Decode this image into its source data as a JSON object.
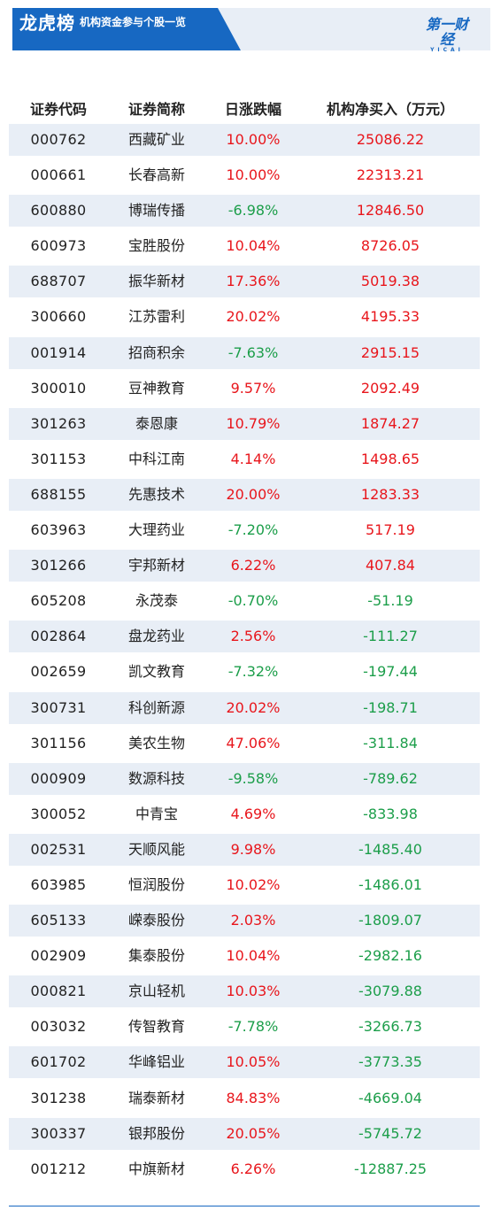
{
  "header": {
    "title": "龙虎榜",
    "subtitle": "机构资金参与个股一览",
    "logo_main": "第一财经",
    "logo_sub": "YICAI"
  },
  "colors": {
    "accent": "#1768c2",
    "row_stripe": "#e8eef6",
    "positive": "#e8161c",
    "negative": "#1c9e4a"
  },
  "table": {
    "columns": [
      "证券代码",
      "证券简称",
      "日涨跌幅",
      "机构净买入（万元）"
    ],
    "rows": [
      {
        "code": "000762",
        "name": "西藏矿业",
        "change": "10.00%",
        "net": "25086.22"
      },
      {
        "code": "000661",
        "name": "长春高新",
        "change": "10.00%",
        "net": "22313.21"
      },
      {
        "code": "600880",
        "name": "博瑞传播",
        "change": "-6.98%",
        "net": "12846.50"
      },
      {
        "code": "600973",
        "name": "宝胜股份",
        "change": "10.04%",
        "net": "8726.05"
      },
      {
        "code": "688707",
        "name": "振华新材",
        "change": "17.36%",
        "net": "5019.38"
      },
      {
        "code": "300660",
        "name": "江苏雷利",
        "change": "20.02%",
        "net": "4195.33"
      },
      {
        "code": "001914",
        "name": "招商积余",
        "change": "-7.63%",
        "net": "2915.15"
      },
      {
        "code": "300010",
        "name": "豆神教育",
        "change": "9.57%",
        "net": "2092.49"
      },
      {
        "code": "301263",
        "name": "泰恩康",
        "change": "10.79%",
        "net": "1874.27"
      },
      {
        "code": "301153",
        "name": "中科江南",
        "change": "4.14%",
        "net": "1498.65"
      },
      {
        "code": "688155",
        "name": "先惠技术",
        "change": "20.00%",
        "net": "1283.33"
      },
      {
        "code": "603963",
        "name": "大理药业",
        "change": "-7.20%",
        "net": "517.19"
      },
      {
        "code": "301266",
        "name": "宇邦新材",
        "change": "6.22%",
        "net": "407.84"
      },
      {
        "code": "605208",
        "name": "永茂泰",
        "change": "-0.70%",
        "net": "-51.19"
      },
      {
        "code": "002864",
        "name": "盘龙药业",
        "change": "2.56%",
        "net": "-111.27"
      },
      {
        "code": "002659",
        "name": "凯文教育",
        "change": "-7.32%",
        "net": "-197.44"
      },
      {
        "code": "300731",
        "name": "科创新源",
        "change": "20.02%",
        "net": "-198.71"
      },
      {
        "code": "301156",
        "name": "美农生物",
        "change": "47.06%",
        "net": "-311.84"
      },
      {
        "code": "000909",
        "name": "数源科技",
        "change": "-9.58%",
        "net": "-789.62"
      },
      {
        "code": "300052",
        "name": "中青宝",
        "change": "4.69%",
        "net": "-833.98"
      },
      {
        "code": "002531",
        "name": "天顺风能",
        "change": "9.98%",
        "net": "-1485.40"
      },
      {
        "code": "603985",
        "name": "恒润股份",
        "change": "10.02%",
        "net": "-1486.01"
      },
      {
        "code": "605133",
        "name": "嵘泰股份",
        "change": "2.03%",
        "net": "-1809.07"
      },
      {
        "code": "002909",
        "name": "集泰股份",
        "change": "10.04%",
        "net": "-2982.16"
      },
      {
        "code": "000821",
        "name": "京山轻机",
        "change": "10.03%",
        "net": "-3079.88"
      },
      {
        "code": "003032",
        "name": "传智教育",
        "change": "-7.78%",
        "net": "-3266.73"
      },
      {
        "code": "601702",
        "name": "华峰铝业",
        "change": "10.05%",
        "net": "-3773.35"
      },
      {
        "code": "301238",
        "name": "瑞泰新材",
        "change": "84.83%",
        "net": "-4669.04"
      },
      {
        "code": "300337",
        "name": "银邦股份",
        "change": "20.05%",
        "net": "-5745.72"
      },
      {
        "code": "001212",
        "name": "中旗新材",
        "change": "6.26%",
        "net": "-12887.25"
      }
    ]
  }
}
